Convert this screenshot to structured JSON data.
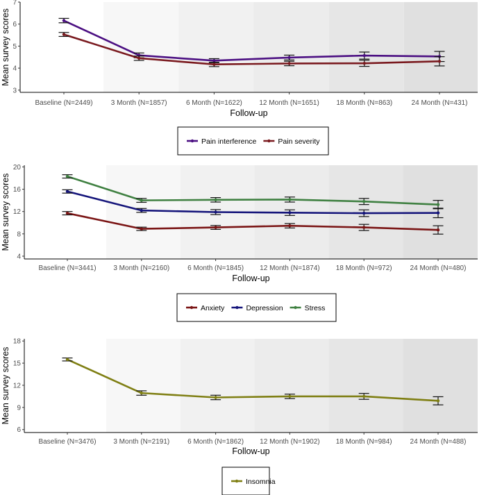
{
  "chart_data": [
    {
      "type": "line",
      "ylabel": "Mean survey scores",
      "xlabel": "Follow-up",
      "categories": [
        "Baseline (N=2449)",
        "3 Month (N=1857)",
        "6 Month (N=1622)",
        "12 Month (N=1651)",
        "18 Month (N=863)",
        "24 Month (N=431)"
      ],
      "ylim": [
        2.9,
        7.0
      ],
      "yticks": [
        3,
        4,
        5,
        6,
        7
      ],
      "ytick_labels": [
        "3",
        "4",
        "5",
        "6",
        "7"
      ],
      "legend_position": "bottom",
      "series": [
        {
          "name": "Pain interference",
          "color": "#4b0f82",
          "values": [
            6.16,
            4.58,
            4.34,
            4.48,
            4.57,
            4.53
          ],
          "err": [
            0.1,
            0.11,
            0.09,
            0.11,
            0.16,
            0.23
          ]
        },
        {
          "name": "Pain severity",
          "color": "#7a1a1f",
          "values": [
            5.53,
            4.45,
            4.17,
            4.21,
            4.22,
            4.31
          ],
          "err": [
            0.09,
            0.1,
            0.1,
            0.1,
            0.14,
            0.21
          ]
        }
      ]
    },
    {
      "type": "line",
      "ylabel": "Mean survey scores",
      "xlabel": "Follow-up",
      "categories": [
        "Baseline (N=3441)",
        "3 Month (N=2160)",
        "6 Month (N=1845)",
        "12 Month (N=1874)",
        "18 Month (N=972)",
        "24 Month (N=480)"
      ],
      "ylim": [
        3.5,
        20.3
      ],
      "yticks": [
        4,
        8,
        12,
        16,
        20
      ],
      "ytick_labels": [
        "4",
        "8",
        "12",
        "16",
        "20"
      ],
      "legend_position": "bottom",
      "series": [
        {
          "name": "Anxiety",
          "color": "#7a1414",
          "values": [
            11.7,
            8.9,
            9.15,
            9.45,
            9.15,
            8.7
          ],
          "err": [
            0.3,
            0.3,
            0.35,
            0.4,
            0.55,
            0.75
          ]
        },
        {
          "name": "Depression",
          "color": "#14147a",
          "values": [
            15.6,
            12.2,
            11.9,
            11.8,
            11.7,
            11.75
          ],
          "err": [
            0.3,
            0.35,
            0.45,
            0.5,
            0.6,
            0.85
          ]
        },
        {
          "name": "Stress",
          "color": "#3f8041",
          "values": [
            18.3,
            14.0,
            14.1,
            14.15,
            13.8,
            13.25
          ],
          "err": [
            0.3,
            0.35,
            0.4,
            0.45,
            0.55,
            0.75
          ]
        }
      ]
    },
    {
      "type": "line",
      "ylabel": "Mean survey scores",
      "xlabel": "Follow-up",
      "categories": [
        "Baseline (N=3476)",
        "3 Month (N=2191)",
        "6 Month (N=1862)",
        "12 Month (N=1902)",
        "18 Month (N=984)",
        "24 Month (N=488)"
      ],
      "ylim": [
        5.6,
        18.3
      ],
      "yticks": [
        6,
        9,
        12,
        15,
        18
      ],
      "ytick_labels": [
        "6",
        "9",
        "12",
        "15",
        "18"
      ],
      "legend_position": "bottom",
      "series": [
        {
          "name": "Insomnia",
          "color": "#7f7f13",
          "values": [
            15.5,
            10.95,
            10.35,
            10.5,
            10.5,
            9.9
          ],
          "err": [
            0.2,
            0.3,
            0.3,
            0.3,
            0.4,
            0.55
          ]
        }
      ]
    }
  ]
}
